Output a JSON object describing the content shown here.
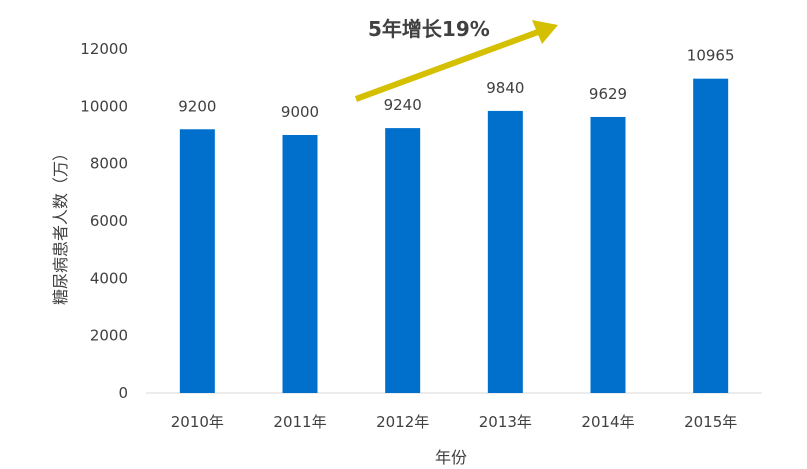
{
  "chart_data": {
    "type": "bar",
    "categories": [
      "2010年",
      "2011年",
      "2012年",
      "2013年",
      "2014年",
      "2015年"
    ],
    "values": [
      9200,
      9000,
      9240,
      9840,
      9629,
      10965
    ],
    "data_labels": [
      "9200",
      "9000",
      "9240",
      "9840",
      "9629",
      "10965"
    ],
    "xlabel": "年份",
    "ylabel": "糖尿病患者人数（万）",
    "ylim": [
      0,
      12000
    ],
    "yticks": [
      0,
      2000,
      4000,
      6000,
      8000,
      10000,
      12000
    ],
    "grid": false,
    "legend": "none",
    "bar_color": "#0070CC",
    "annotation": {
      "text": "5年增长19%",
      "arrow_color": "#D4C000"
    }
  }
}
